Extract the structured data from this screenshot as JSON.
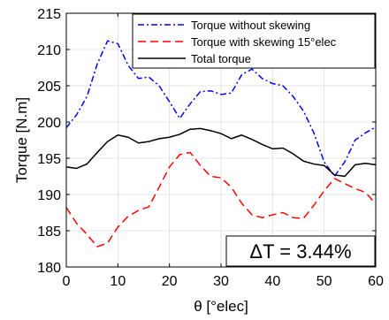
{
  "chart_data": {
    "type": "line",
    "title": "",
    "xlabel": "θ [°elec]",
    "ylabel": "Torque [N.m]",
    "xlim": [
      0,
      60
    ],
    "ylim": [
      180,
      215
    ],
    "grid": true,
    "x_ticks": [
      "0",
      "10",
      "20",
      "30",
      "40",
      "50",
      "60"
    ],
    "y_ticks": [
      "180",
      "185",
      "190",
      "195",
      "200",
      "205",
      "210",
      "215"
    ],
    "legend_position": "top-right",
    "annotation": "ΔT = 3.44%",
    "series": [
      {
        "name": "Torque without skewing",
        "color": "#0000ff",
        "line_style": "dashdot",
        "x": [
          0,
          2,
          4,
          6,
          8,
          10,
          12,
          14,
          16,
          18,
          20,
          22,
          24,
          26,
          28,
          30,
          32,
          34,
          36,
          38,
          40,
          42,
          44,
          46,
          48,
          50,
          52,
          54,
          56,
          58,
          60
        ],
        "y": [
          199.2,
          201,
          203.5,
          208,
          211.2,
          210.8,
          207.8,
          206,
          206.2,
          205,
          202.8,
          200.5,
          202.5,
          204.2,
          204.3,
          203.8,
          204,
          206.5,
          207.3,
          206,
          205.3,
          205,
          203.5,
          201.5,
          198.5,
          194.5,
          192.5,
          194.5,
          197.5,
          198.5,
          199.3
        ]
      },
      {
        "name": "Torque with skewing 15°elec",
        "color": "#ff0000",
        "line_style": "dashed",
        "x": [
          0,
          2,
          4,
          6,
          8,
          10,
          12,
          14,
          16,
          18,
          20,
          22,
          24,
          26,
          28,
          30,
          32,
          34,
          36,
          38,
          40,
          42,
          44,
          46,
          48,
          50,
          52,
          54,
          56,
          58,
          60
        ],
        "y": [
          188.2,
          186,
          184.5,
          182.8,
          183.3,
          185.5,
          187,
          187.8,
          188.3,
          191,
          193.8,
          195.5,
          195.8,
          194,
          192.5,
          192.3,
          191,
          188.8,
          187.2,
          186.8,
          187.2,
          187.5,
          186.8,
          186.7,
          188.5,
          190.5,
          192.2,
          191.5,
          190.8,
          190.3,
          188.7
        ]
      },
      {
        "name": "Total torque",
        "color": "#000000",
        "line_style": "solid",
        "x": [
          0,
          2,
          4,
          6,
          8,
          10,
          12,
          14,
          16,
          18,
          20,
          22,
          24,
          26,
          28,
          30,
          32,
          34,
          36,
          38,
          40,
          42,
          44,
          46,
          48,
          50,
          52,
          54,
          56,
          58,
          60
        ],
        "y": [
          193.8,
          193.6,
          194.2,
          195.8,
          197.3,
          198.2,
          197.9,
          197.1,
          197.3,
          197.7,
          197.9,
          198.3,
          199,
          199.1,
          198.8,
          198.4,
          197.7,
          198.2,
          197.6,
          196.9,
          196.3,
          196.4,
          195.6,
          194.6,
          194.2,
          194,
          192.7,
          192.5,
          194.1,
          194.3,
          194.1
        ]
      }
    ]
  }
}
